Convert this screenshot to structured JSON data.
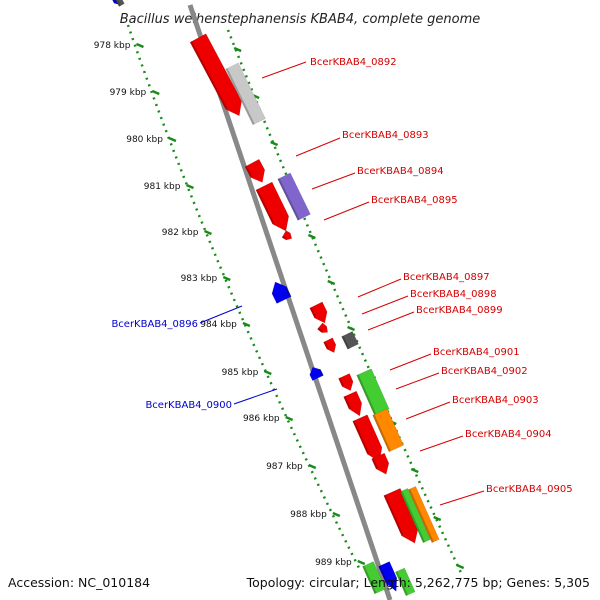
{
  "title": "Bacillus weihenstephanensis KBAB4, complete genome",
  "accession": "Accession: NC_010184",
  "summary": "Topology: circular; Length: 5,262,775 bp; Genes: 5,305",
  "kbp_ticks": [
    "978 kbp",
    "979 kbp",
    "980 kbp",
    "981 kbp",
    "982 kbp",
    "983 kbp",
    "984 kbp",
    "985 kbp",
    "986 kbp",
    "987 kbp",
    "988 kbp",
    "989 kbp"
  ],
  "genes_forward": [
    {
      "label": "BcerKBAB4_0892",
      "color": "#d40000"
    },
    {
      "label": "BcerKBAB4_0893",
      "color": "#d40000"
    },
    {
      "label": "BcerKBAB4_0894",
      "color": "#d40000"
    },
    {
      "label": "BcerKBAB4_0895",
      "color": "#d40000"
    },
    {
      "label": "BcerKBAB4_0897",
      "color": "#d40000"
    },
    {
      "label": "BcerKBAB4_0898",
      "color": "#d40000"
    },
    {
      "label": "BcerKBAB4_0899",
      "color": "#d40000"
    },
    {
      "label": "BcerKBAB4_0901",
      "color": "#d40000"
    },
    {
      "label": "BcerKBAB4_0902",
      "color": "#d40000"
    },
    {
      "label": "BcerKBAB4_0903",
      "color": "#d40000"
    },
    {
      "label": "BcerKBAB4_0904",
      "color": "#d40000"
    },
    {
      "label": "BcerKBAB4_0905",
      "color": "#d40000"
    }
  ],
  "genes_reverse": [
    {
      "label": "BcerKBAB4_0896",
      "color": "#0000cc"
    },
    {
      "label": "BcerKBAB4_0900",
      "color": "#0000cc"
    }
  ],
  "colors": {
    "forward": "#ee0000",
    "reverse": "#0000ee",
    "backbone": "#888888",
    "ruler": "#1a8a1a",
    "cog_grey": "#c8c8c8",
    "cog_purple": "#8066cc",
    "cog_green": "#44cc33",
    "cog_orange": "#ff8800",
    "dark": "#555555"
  }
}
